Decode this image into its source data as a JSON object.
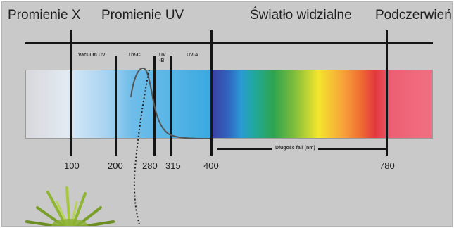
{
  "regions": {
    "x_rays": "Promienie X",
    "uv": "Promienie UV",
    "visible": "Światło widzialne",
    "infrared": "Podczerwień"
  },
  "uv_subbands": {
    "vacuum_uv": "Vacuum UV",
    "uv_c": "UV-C",
    "uv_b_line1": "UV",
    "uv_b_line2": "-B",
    "uv_a": "UV-A"
  },
  "wavelength_ticks": [
    "100",
    "200",
    "280",
    "315",
    "400",
    "780"
  ],
  "visible_range_label": "Długość fali (nm)",
  "colors": {
    "background": "#c9c9c9",
    "lines": "#151515",
    "uv_band": "#3aa9e0",
    "infrared_band": "#f17082"
  }
}
